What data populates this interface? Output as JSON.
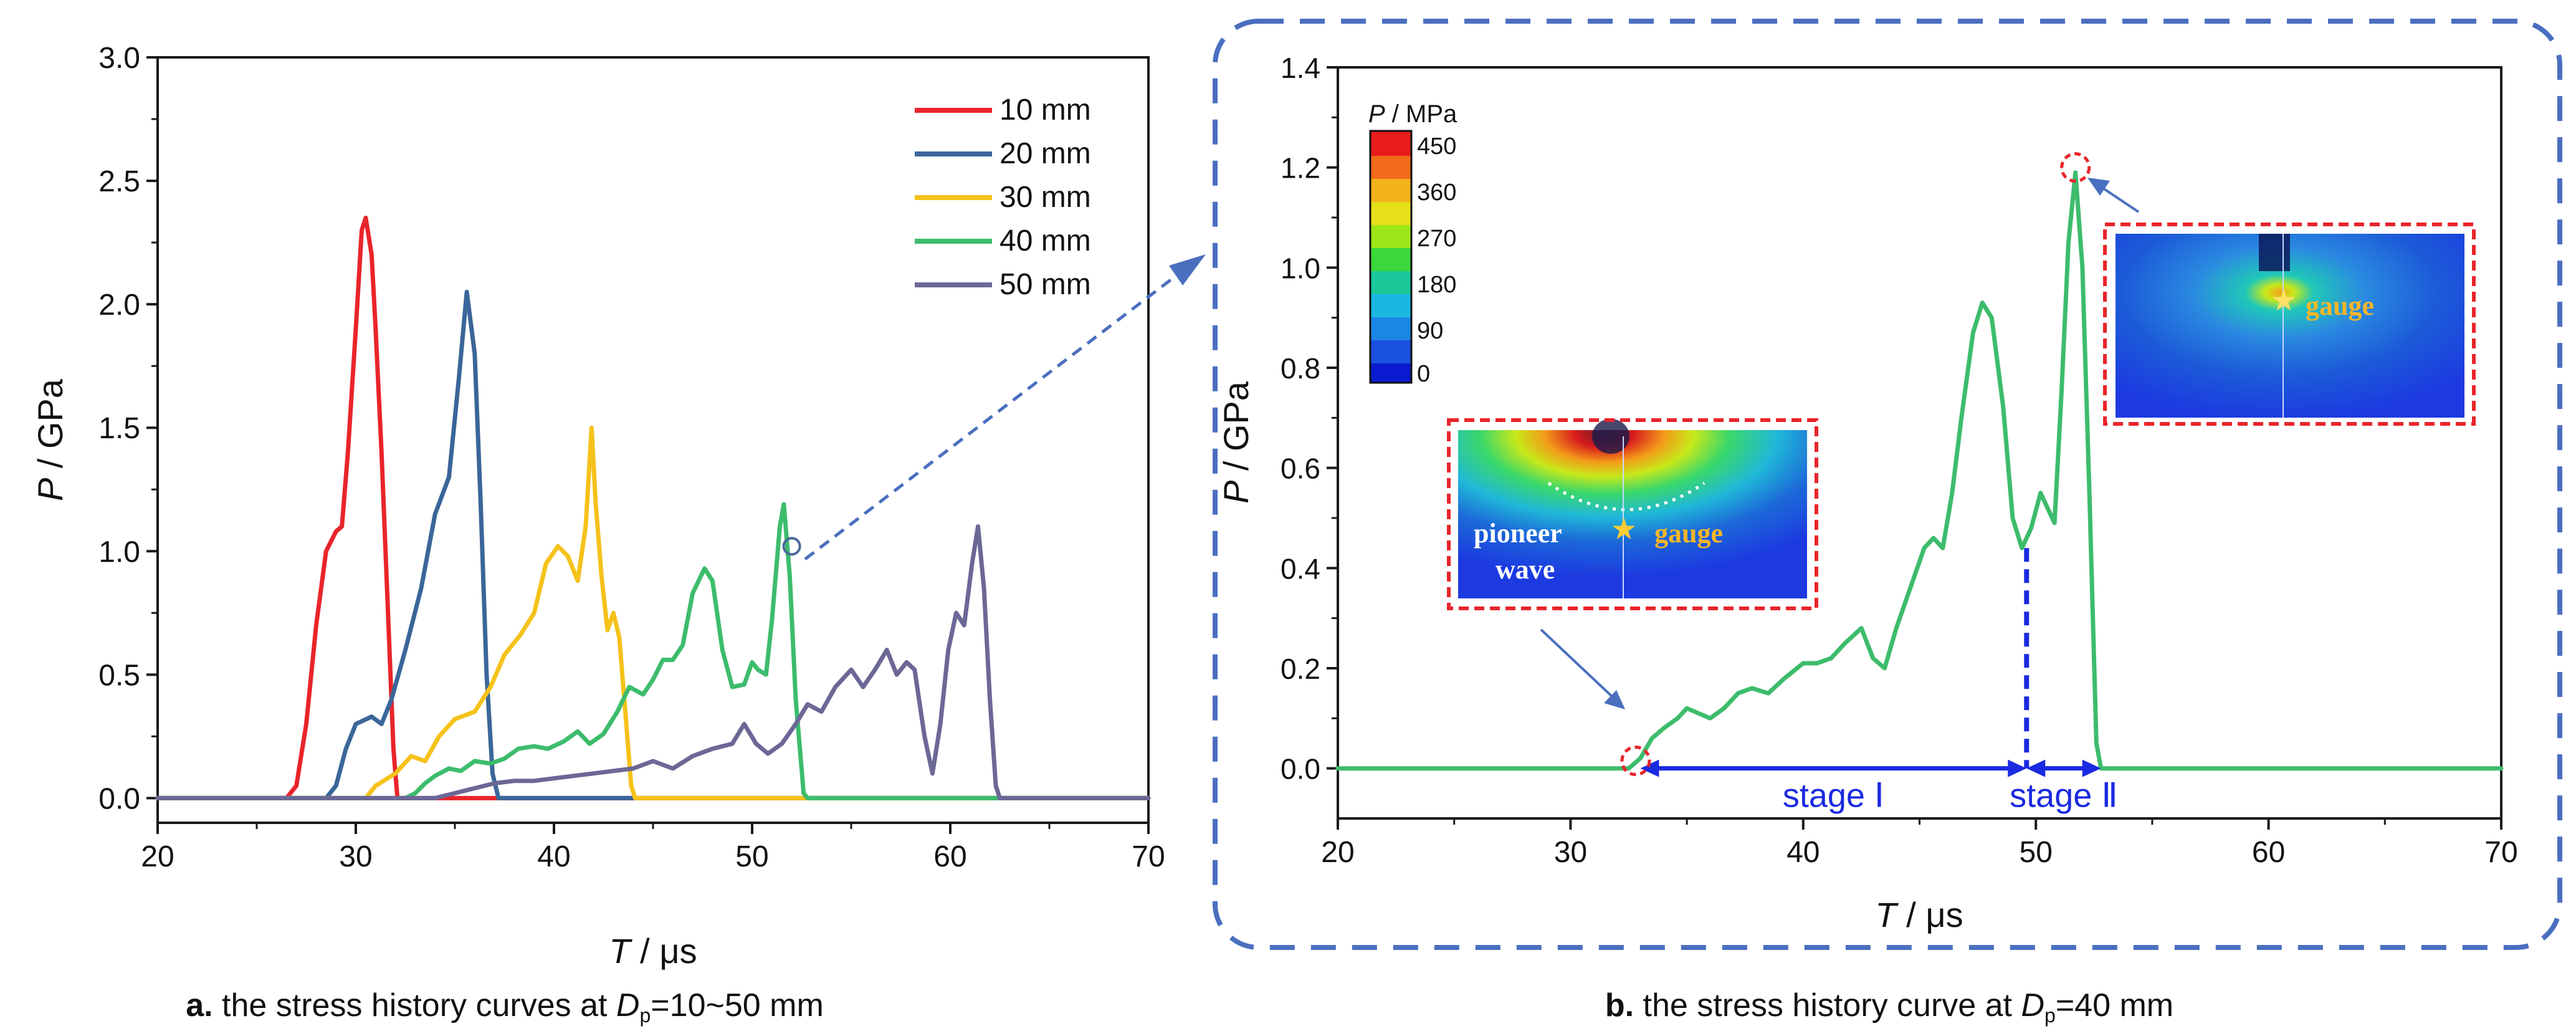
{
  "chart_data": [
    {
      "type": "line",
      "xlabel": "T / μs",
      "xlabel_var": "T",
      "xlabel_unit": "μs",
      "ylabel": "P / GPa",
      "ylabel_var": "P",
      "ylabel_unit": "GPa",
      "xlim": [
        20,
        70
      ],
      "ylim": [
        -0.1,
        3.0
      ],
      "xticks": [
        "20",
        "30",
        "40",
        "50",
        "60",
        "70"
      ],
      "yticks": [
        "0.0",
        "0.5",
        "1.0",
        "1.5",
        "2.0",
        "2.5",
        "3.0"
      ],
      "legend_position": "top-right",
      "caption_prefix": "a.",
      "caption_text": " the stress history curves at ",
      "caption_var": "D",
      "caption_sub": "p",
      "caption_value": "=10~50 mm",
      "series": [
        {
          "name": "10 mm",
          "color": "#e8252b",
          "points": [
            [
              20,
              0
            ],
            [
              26.5,
              0
            ],
            [
              27,
              0.05
            ],
            [
              27.5,
              0.3
            ],
            [
              28,
              0.7
            ],
            [
              28.5,
              1.0
            ],
            [
              29,
              1.08
            ],
            [
              29.3,
              1.1
            ],
            [
              29.6,
              1.4
            ],
            [
              30,
              1.9
            ],
            [
              30.3,
              2.3
            ],
            [
              30.5,
              2.35
            ],
            [
              30.8,
              2.2
            ],
            [
              31,
              1.9
            ],
            [
              31.3,
              1.4
            ],
            [
              31.6,
              0.8
            ],
            [
              31.9,
              0.2
            ],
            [
              32.1,
              0
            ],
            [
              70,
              0
            ]
          ]
        },
        {
          "name": "20 mm",
          "color": "#3a6699",
          "points": [
            [
              20,
              0
            ],
            [
              28.5,
              0
            ],
            [
              29,
              0.05
            ],
            [
              29.5,
              0.2
            ],
            [
              30,
              0.3
            ],
            [
              30.8,
              0.33
            ],
            [
              31.3,
              0.3
            ],
            [
              31.8,
              0.4
            ],
            [
              32.5,
              0.6
            ],
            [
              33.3,
              0.85
            ],
            [
              34,
              1.15
            ],
            [
              34.7,
              1.3
            ],
            [
              35.2,
              1.7
            ],
            [
              35.6,
              2.05
            ],
            [
              36,
              1.8
            ],
            [
              36.3,
              1.2
            ],
            [
              36.6,
              0.5
            ],
            [
              36.9,
              0.1
            ],
            [
              37.2,
              0
            ],
            [
              70,
              0
            ]
          ]
        },
        {
          "name": "30 mm",
          "color": "#f5c21b",
          "points": [
            [
              20,
              0
            ],
            [
              30.5,
              0
            ],
            [
              31,
              0.05
            ],
            [
              32,
              0.1
            ],
            [
              32.8,
              0.17
            ],
            [
              33.5,
              0.15
            ],
            [
              34.2,
              0.25
            ],
            [
              35,
              0.32
            ],
            [
              36,
              0.35
            ],
            [
              36.8,
              0.45
            ],
            [
              37.5,
              0.58
            ],
            [
              38.3,
              0.66
            ],
            [
              39,
              0.75
            ],
            [
              39.6,
              0.95
            ],
            [
              40.2,
              1.02
            ],
            [
              40.7,
              0.98
            ],
            [
              41.2,
              0.88
            ],
            [
              41.6,
              1.1
            ],
            [
              41.9,
              1.5
            ],
            [
              42.1,
              1.2
            ],
            [
              42.4,
              0.9
            ],
            [
              42.7,
              0.68
            ],
            [
              43,
              0.75
            ],
            [
              43.3,
              0.65
            ],
            [
              43.6,
              0.35
            ],
            [
              43.9,
              0.05
            ],
            [
              44.1,
              0
            ],
            [
              70,
              0
            ]
          ]
        },
        {
          "name": "40 mm",
          "color": "#3dbc6c",
          "points": [
            [
              20,
              0
            ],
            [
              32.5,
              0
            ],
            [
              33,
              0.02
            ],
            [
              33.5,
              0.06
            ],
            [
              34,
              0.09
            ],
            [
              34.7,
              0.12
            ],
            [
              35.3,
              0.11
            ],
            [
              36,
              0.15
            ],
            [
              36.8,
              0.14
            ],
            [
              37.5,
              0.16
            ],
            [
              38.2,
              0.2
            ],
            [
              39,
              0.21
            ],
            [
              39.7,
              0.2
            ],
            [
              40.5,
              0.23
            ],
            [
              41.2,
              0.27
            ],
            [
              41.8,
              0.22
            ],
            [
              42.5,
              0.26
            ],
            [
              43.2,
              0.35
            ],
            [
              43.8,
              0.45
            ],
            [
              44.5,
              0.42
            ],
            [
              45,
              0.48
            ],
            [
              45.5,
              0.56
            ],
            [
              46,
              0.56
            ],
            [
              46.5,
              0.62
            ],
            [
              47,
              0.83
            ],
            [
              47.6,
              0.93
            ],
            [
              48,
              0.88
            ],
            [
              48.5,
              0.6
            ],
            [
              49,
              0.45
            ],
            [
              49.6,
              0.46
            ],
            [
              50,
              0.55
            ],
            [
              50.3,
              0.52
            ],
            [
              50.7,
              0.5
            ],
            [
              51,
              0.72
            ],
            [
              51.4,
              1.1
            ],
            [
              51.6,
              1.19
            ],
            [
              51.9,
              0.9
            ],
            [
              52.2,
              0.4
            ],
            [
              52.6,
              0.02
            ],
            [
              52.8,
              0
            ],
            [
              70,
              0
            ]
          ]
        },
        {
          "name": "50 mm",
          "color": "#6b6896",
          "points": [
            [
              20,
              0
            ],
            [
              34,
              0
            ],
            [
              35,
              0.02
            ],
            [
              36,
              0.04
            ],
            [
              37,
              0.06
            ],
            [
              38,
              0.07
            ],
            [
              39,
              0.07
            ],
            [
              40,
              0.08
            ],
            [
              41,
              0.09
            ],
            [
              42,
              0.1
            ],
            [
              43,
              0.11
            ],
            [
              44,
              0.12
            ],
            [
              45,
              0.15
            ],
            [
              46,
              0.12
            ],
            [
              47,
              0.17
            ],
            [
              48,
              0.2
            ],
            [
              49,
              0.22
            ],
            [
              49.6,
              0.3
            ],
            [
              50.2,
              0.22
            ],
            [
              50.8,
              0.18
            ],
            [
              51.5,
              0.22
            ],
            [
              52.2,
              0.3
            ],
            [
              52.8,
              0.38
            ],
            [
              53.5,
              0.35
            ],
            [
              54.2,
              0.45
            ],
            [
              55,
              0.52
            ],
            [
              55.6,
              0.45
            ],
            [
              56.2,
              0.52
            ],
            [
              56.8,
              0.6
            ],
            [
              57.3,
              0.5
            ],
            [
              57.8,
              0.55
            ],
            [
              58.2,
              0.52
            ],
            [
              58.7,
              0.25
            ],
            [
              59.1,
              0.1
            ],
            [
              59.5,
              0.3
            ],
            [
              59.9,
              0.6
            ],
            [
              60.3,
              0.75
            ],
            [
              60.7,
              0.7
            ],
            [
              61.1,
              0.95
            ],
            [
              61.4,
              1.1
            ],
            [
              61.7,
              0.85
            ],
            [
              62,
              0.4
            ],
            [
              62.3,
              0.05
            ],
            [
              62.5,
              0
            ],
            [
              70,
              0
            ]
          ]
        }
      ],
      "annotations": [
        {
          "type": "circle-marker",
          "x": 52.0,
          "y": 1.02,
          "color": "#4a6a9a"
        }
      ]
    },
    {
      "type": "line",
      "xlabel": "T / μs",
      "xlabel_var": "T",
      "xlabel_unit": "μs",
      "ylabel": "P / GPa",
      "ylabel_var": "P",
      "ylabel_unit": "GPa",
      "xlim": [
        20,
        70
      ],
      "ylim": [
        -0.1,
        1.4
      ],
      "xticks": [
        "20",
        "30",
        "40",
        "50",
        "60",
        "70"
      ],
      "yticks": [
        "0.0",
        "0.2",
        "0.4",
        "0.6",
        "0.8",
        "1.0",
        "1.2",
        "1.4"
      ],
      "caption_prefix": "b.",
      "caption_text": " the stress history curve at ",
      "caption_var": "D",
      "caption_sub": "p",
      "caption_value": "=40 mm",
      "series": [
        {
          "color": "#3dbc6c",
          "points": [
            [
              20,
              0
            ],
            [
              32.5,
              0
            ],
            [
              33,
              0.02
            ],
            [
              33.5,
              0.06
            ],
            [
              34,
              0.08
            ],
            [
              34.6,
              0.1
            ],
            [
              35,
              0.12
            ],
            [
              35.5,
              0.11
            ],
            [
              36,
              0.1
            ],
            [
              36.6,
              0.12
            ],
            [
              37.2,
              0.15
            ],
            [
              37.8,
              0.16
            ],
            [
              38.5,
              0.15
            ],
            [
              39.2,
              0.18
            ],
            [
              40,
              0.21
            ],
            [
              40.6,
              0.21
            ],
            [
              41.2,
              0.22
            ],
            [
              41.8,
              0.25
            ],
            [
              42.5,
              0.28
            ],
            [
              43,
              0.22
            ],
            [
              43.5,
              0.2
            ],
            [
              44,
              0.28
            ],
            [
              44.6,
              0.36
            ],
            [
              45.2,
              0.44
            ],
            [
              45.6,
              0.46
            ],
            [
              46,
              0.44
            ],
            [
              46.4,
              0.55
            ],
            [
              46.8,
              0.7
            ],
            [
              47.3,
              0.87
            ],
            [
              47.7,
              0.93
            ],
            [
              48.1,
              0.9
            ],
            [
              48.6,
              0.72
            ],
            [
              49,
              0.5
            ],
            [
              49.4,
              0.44
            ],
            [
              49.8,
              0.48
            ],
            [
              50.2,
              0.55
            ],
            [
              50.5,
              0.52
            ],
            [
              50.8,
              0.49
            ],
            [
              51.1,
              0.75
            ],
            [
              51.4,
              1.05
            ],
            [
              51.7,
              1.19
            ],
            [
              52,
              1.0
            ],
            [
              52.3,
              0.55
            ],
            [
              52.6,
              0.05
            ],
            [
              52.8,
              0
            ],
            [
              70,
              0
            ]
          ]
        }
      ],
      "stages": [
        {
          "label": "stage Ⅰ",
          "from": 33,
          "to": 49.6
        },
        {
          "label": "stage Ⅱ",
          "from": 49.6,
          "to": 52.8
        }
      ],
      "divider_x": 49.6,
      "markers": [
        {
          "type": "dashed-circle",
          "x": 32.8,
          "y": 0.015,
          "color": "#e8252b"
        },
        {
          "type": "dashed-circle",
          "x": 51.7,
          "y": 1.2,
          "color": "#e8252b"
        }
      ],
      "colorbar": {
        "title_var": "P",
        "title_unit": " / MPa",
        "ticks": [
          "450",
          "360",
          "270",
          "180",
          "90",
          "0"
        ]
      },
      "insets": [
        {
          "labels": [
            "pioneer",
            "wave",
            "gauge"
          ]
        },
        {
          "labels": [
            "gauge"
          ]
        }
      ]
    }
  ]
}
